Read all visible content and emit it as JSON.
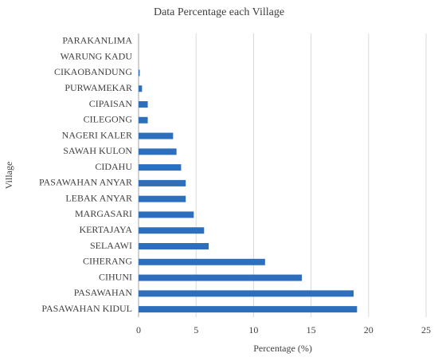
{
  "chart_data": {
    "type": "hbar",
    "title": "Data Percentage each Village",
    "x_label": "Percentage (%)",
    "y_label": "Village",
    "categories": [
      "PARAKANLIMA",
      "WARUNG KADU",
      "CIKAOBANDUNG",
      "PURWAMEKAR",
      "CIPAISAN",
      "CILEGONG",
      "NAGERI KALER",
      "SAWAH KULON",
      "CIDAHU",
      "PASAWAHAN ANYAR",
      "LEBAK ANYAR",
      "MARGASARI",
      "KERTAJAYA",
      "SELAAWI",
      "CIHERANG",
      "CIHUNI",
      "PASAWAHAN",
      "PASAWAHAN KIDUL"
    ],
    "values": [
      0,
      0,
      0.1,
      0.3,
      0.8,
      0.8,
      3.0,
      3.3,
      3.7,
      4.1,
      4.1,
      4.8,
      5.7,
      6.1,
      11.0,
      14.2,
      18.7,
      19.0
    ],
    "color": "#2e6fbd",
    "xlim": [
      0,
      25
    ],
    "xticks": [
      0,
      5,
      10,
      15,
      20,
      25
    ],
    "grid": true
  }
}
